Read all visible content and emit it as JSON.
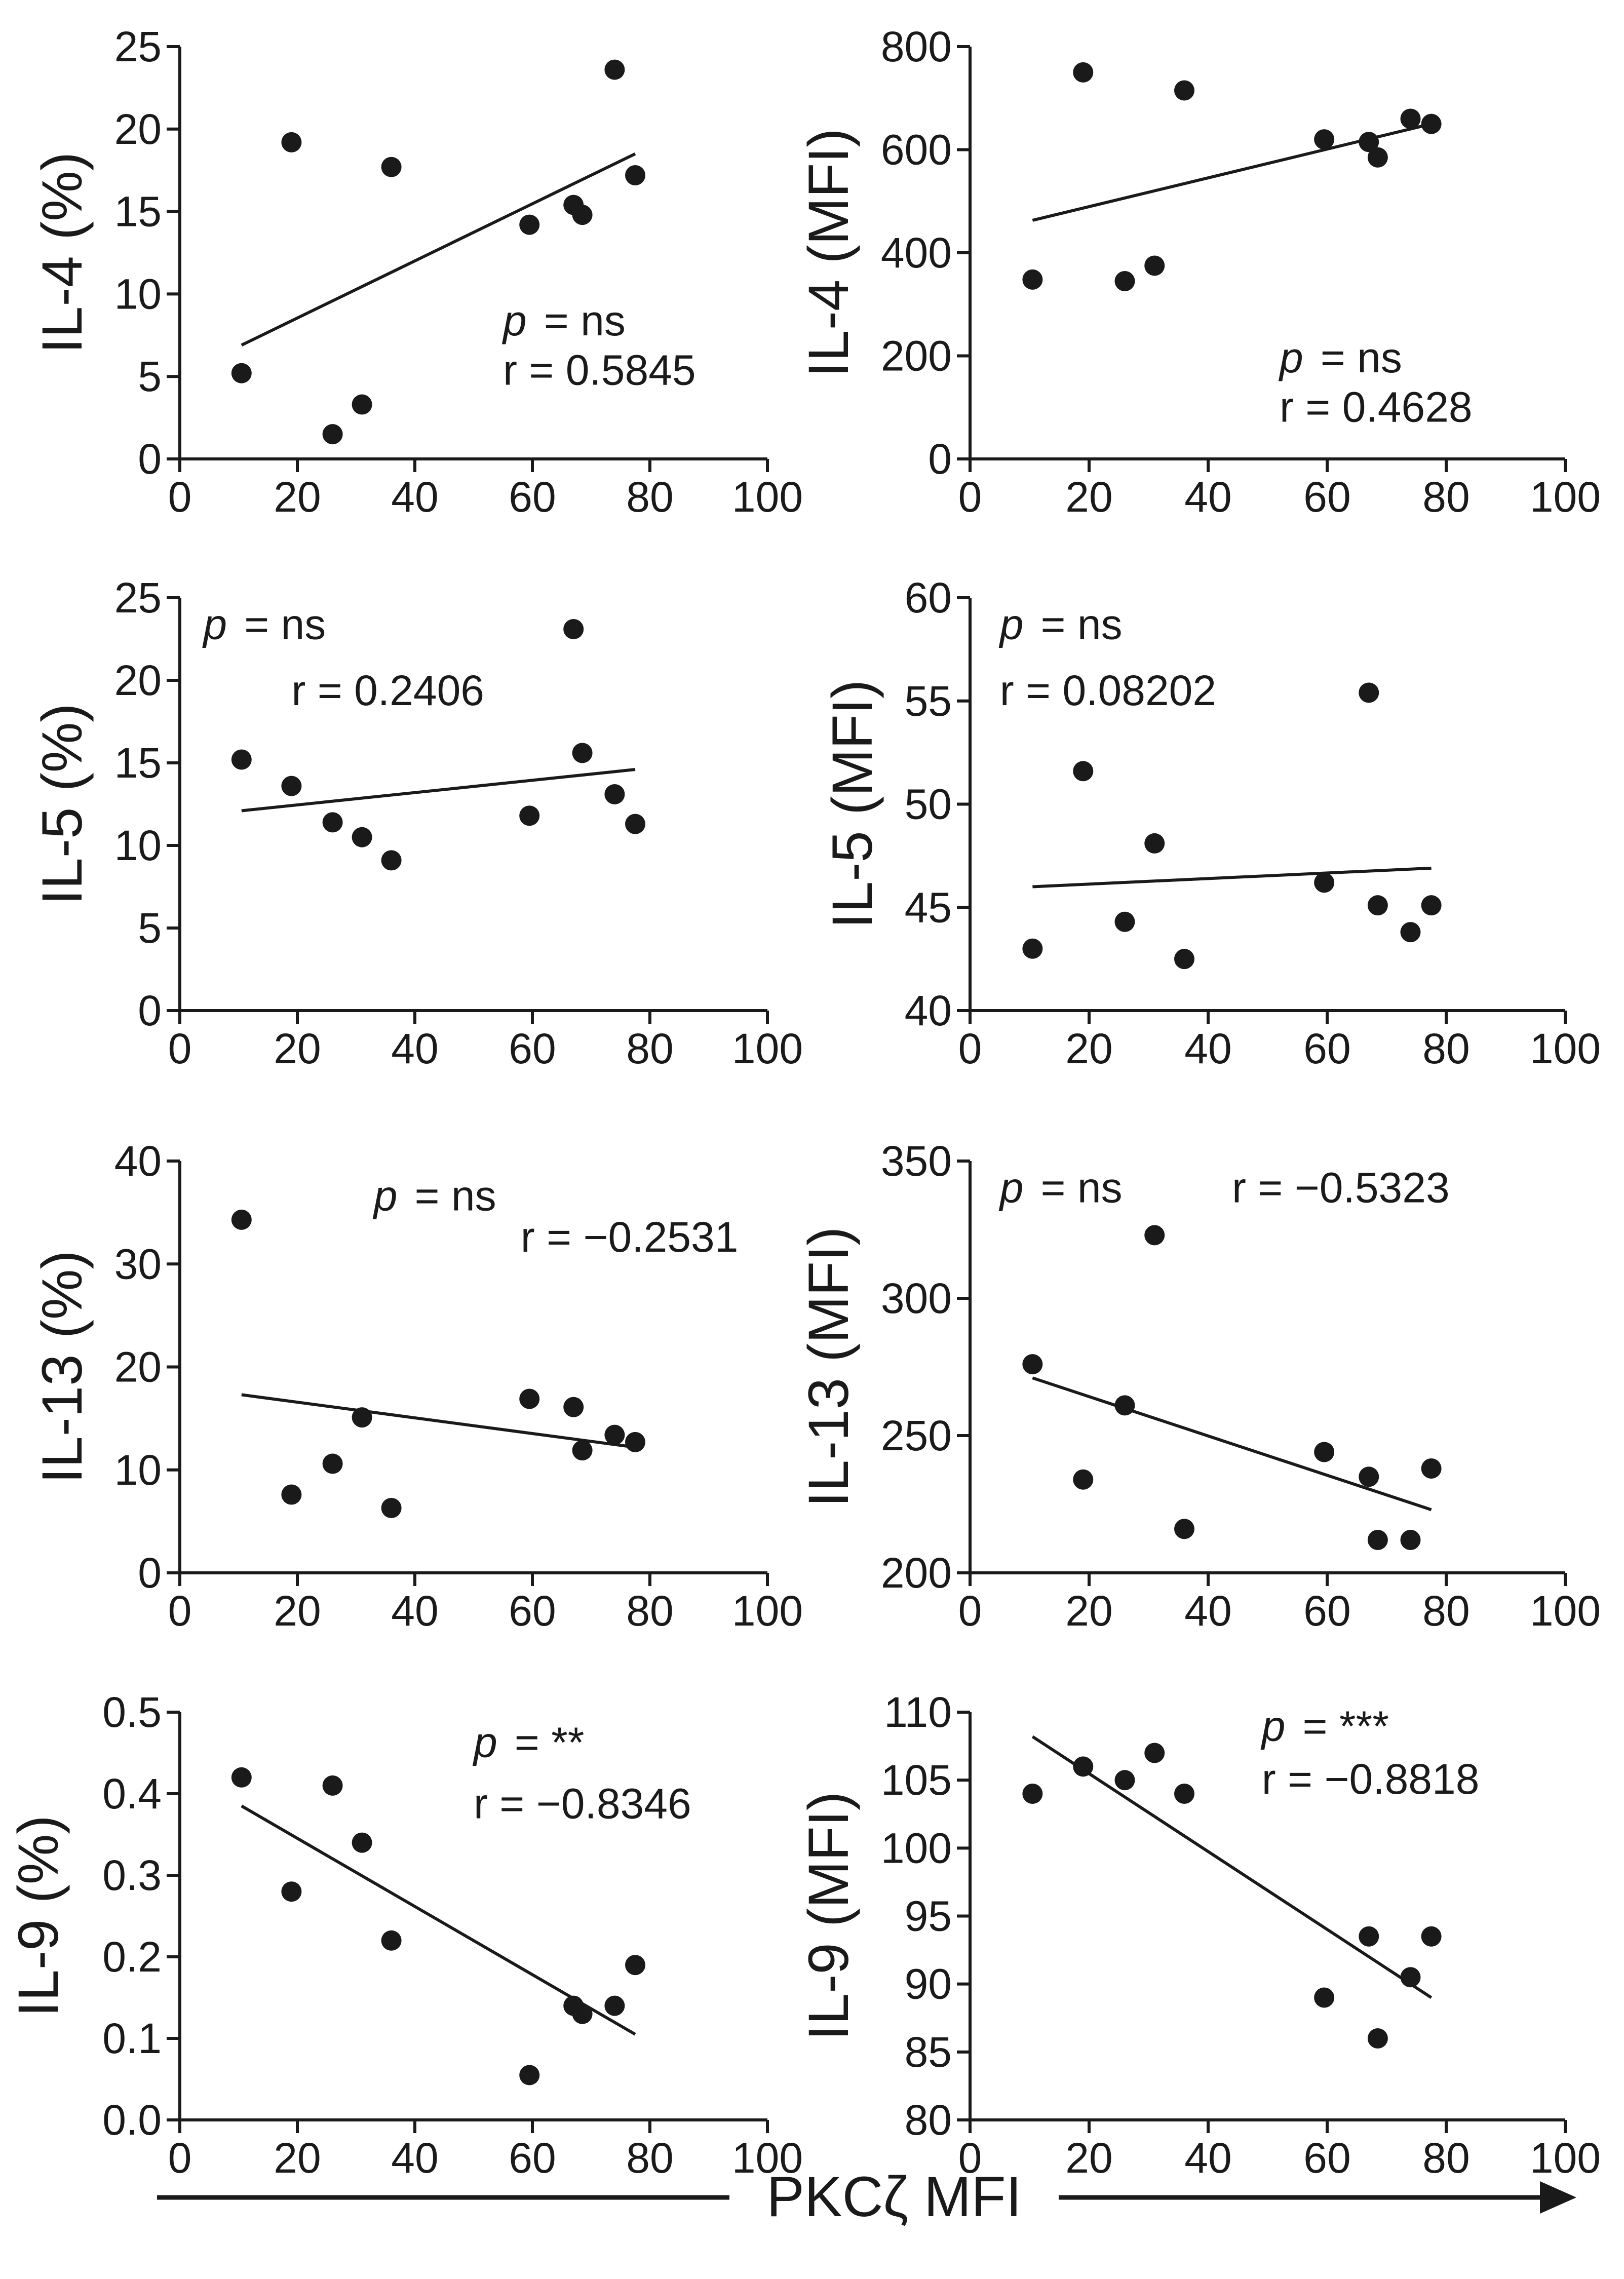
{
  "x_axis_title": "PKCζ MFI",
  "colors": {
    "ink": "#1a1a1a",
    "background": "#ffffff"
  },
  "chart_data": [
    {
      "type": "scatter",
      "panel": "IL-4 (%)",
      "ylabel": "IL-4 (%)",
      "xlim": [
        0,
        100
      ],
      "ylim": [
        0,
        25
      ],
      "xticks": [
        0,
        20,
        40,
        60,
        80,
        100
      ],
      "yticks": [
        0,
        5,
        10,
        15,
        20,
        25
      ],
      "ytick_labels": [
        "0",
        "5",
        "10",
        "15",
        "20",
        "25"
      ],
      "x": [
        10.5,
        19,
        26,
        31,
        36,
        59.5,
        67,
        68.5,
        74,
        77.5
      ],
      "y": [
        5.2,
        19.2,
        1.5,
        3.3,
        17.7,
        14.2,
        15.4,
        14.8,
        23.6,
        17.2
      ],
      "fit": {
        "x": [
          10.5,
          77.5
        ],
        "y": [
          6.9,
          18.5
        ]
      },
      "p_label": "p",
      "p_value": "= ns",
      "r_text": "r = 0.5845"
    },
    {
      "type": "scatter",
      "panel": "IL-4 (MFI)",
      "ylabel": "IL-4 (MFI)",
      "xlim": [
        0,
        100
      ],
      "ylim": [
        0,
        800
      ],
      "xticks": [
        0,
        20,
        40,
        60,
        80,
        100
      ],
      "yticks": [
        0,
        200,
        400,
        600,
        800
      ],
      "ytick_labels": [
        "0",
        "200",
        "400",
        "600",
        "800"
      ],
      "x": [
        10.5,
        19,
        26,
        31,
        36,
        59.5,
        67,
        68.5,
        74,
        77.5
      ],
      "y": [
        348,
        750,
        345,
        375,
        715,
        620,
        615,
        585,
        660,
        650
      ],
      "fit": {
        "x": [
          10.5,
          77.5
        ],
        "y": [
          463,
          650
        ]
      },
      "p_label": "p",
      "p_value": "= ns",
      "r_text": "r = 0.4628"
    },
    {
      "type": "scatter",
      "panel": "IL-5 (%)",
      "ylabel": "IL-5 (%)",
      "xlim": [
        0,
        100
      ],
      "ylim": [
        0,
        25
      ],
      "xticks": [
        0,
        20,
        40,
        60,
        80,
        100
      ],
      "yticks": [
        0,
        5,
        10,
        15,
        20,
        25
      ],
      "ytick_labels": [
        "0",
        "5",
        "10",
        "15",
        "20",
        "25"
      ],
      "x": [
        10.5,
        19,
        26,
        31,
        36,
        59.5,
        67,
        68.5,
        74,
        77.5
      ],
      "y": [
        15.2,
        13.6,
        11.4,
        10.5,
        9.1,
        11.8,
        23.1,
        15.6,
        13.1,
        11.3
      ],
      "fit": {
        "x": [
          10.5,
          77.5
        ],
        "y": [
          12.1,
          14.6
        ]
      },
      "p_label": "p",
      "p_value": "= ns",
      "r_text": "r = 0.2406"
    },
    {
      "type": "scatter",
      "panel": "IL-5 (MFI)",
      "ylabel": "IL-5 (MFI)",
      "xlim": [
        0,
        100
      ],
      "ylim": [
        40,
        60
      ],
      "xticks": [
        0,
        20,
        40,
        60,
        80,
        100
      ],
      "yticks": [
        40,
        45,
        50,
        55,
        60
      ],
      "ytick_labels": [
        "40",
        "45",
        "50",
        "55",
        "60"
      ],
      "x": [
        10.5,
        19,
        26,
        31,
        36,
        59.5,
        67,
        68.5,
        74,
        77.5
      ],
      "y": [
        43,
        51.6,
        44.3,
        48.1,
        42.5,
        46.2,
        55.4,
        45.1,
        43.8,
        45.1
      ],
      "fit": {
        "x": [
          10.5,
          77.5
        ],
        "y": [
          46.0,
          46.9
        ]
      },
      "p_label": "p",
      "p_value": "= ns",
      "r_text": "r = 0.08202"
    },
    {
      "type": "scatter",
      "panel": "IL-13 (%)",
      "ylabel": "IL-13 (%)",
      "xlim": [
        0,
        100
      ],
      "ylim": [
        0,
        40
      ],
      "xticks": [
        0,
        20,
        40,
        60,
        80,
        100
      ],
      "yticks": [
        0,
        10,
        20,
        30,
        40
      ],
      "ytick_labels": [
        "0",
        "10",
        "20",
        "30",
        "40"
      ],
      "x": [
        10.5,
        19,
        26,
        31,
        36,
        59.5,
        67,
        68.5,
        74,
        77.5
      ],
      "y": [
        34.3,
        7.6,
        10.6,
        15.1,
        6.3,
        16.9,
        16.1,
        11.9,
        13.4,
        12.7
      ],
      "fit": {
        "x": [
          10.5,
          77.5
        ],
        "y": [
          17.3,
          12.2
        ]
      },
      "p_label": "p",
      "p_value": "= ns",
      "r_text": "r = −0.2531"
    },
    {
      "type": "scatter",
      "panel": "IL-13 (MFI)",
      "ylabel": "IL-13 (MFI)",
      "xlim": [
        0,
        100
      ],
      "ylim": [
        200,
        350
      ],
      "xticks": [
        0,
        20,
        40,
        60,
        80,
        100
      ],
      "yticks": [
        200,
        250,
        300,
        350
      ],
      "ytick_labels": [
        "200",
        "250",
        "300",
        "350"
      ],
      "x": [
        10.5,
        19,
        26,
        31,
        36,
        59.5,
        67,
        68.5,
        74,
        77.5
      ],
      "y": [
        276,
        234,
        261,
        323,
        216,
        244,
        235,
        212,
        212,
        238
      ],
      "fit": {
        "x": [
          10.5,
          77.5
        ],
        "y": [
          271,
          223
        ]
      },
      "p_label": "p",
      "p_value": "= ns",
      "r_text": "r = −0.5323"
    },
    {
      "type": "scatter",
      "panel": "IL-9 (%)",
      "ylabel": "IL-9 (%)",
      "xlim": [
        0,
        100
      ],
      "ylim": [
        0,
        0.5
      ],
      "xticks": [
        0,
        20,
        40,
        60,
        80,
        100
      ],
      "yticks": [
        0,
        0.1,
        0.2,
        0.3,
        0.4,
        0.5
      ],
      "ytick_labels": [
        "0.0",
        "0.1",
        "0.2",
        "0.3",
        "0.4",
        "0.5"
      ],
      "x": [
        10.5,
        19,
        26,
        31,
        36,
        59.5,
        67,
        68.5,
        74,
        77.5
      ],
      "y": [
        0.42,
        0.28,
        0.41,
        0.34,
        0.22,
        0.055,
        0.14,
        0.13,
        0.14,
        0.19
      ],
      "fit": {
        "x": [
          10.5,
          77.5
        ],
        "y": [
          0.385,
          0.105
        ]
      },
      "p_label": "p",
      "p_value": "= **",
      "r_text": "r = −0.8346"
    },
    {
      "type": "scatter",
      "panel": "IL-9 (MFI)",
      "ylabel": "IL-9 (MFI)",
      "xlim": [
        0,
        100
      ],
      "ylim": [
        80,
        110
      ],
      "xticks": [
        0,
        20,
        40,
        60,
        80,
        100
      ],
      "yticks": [
        80,
        85,
        90,
        95,
        100,
        105,
        110
      ],
      "ytick_labels": [
        "80",
        "85",
        "90",
        "95",
        "100",
        "105",
        "110"
      ],
      "x": [
        10.5,
        19,
        26,
        31,
        36,
        59.5,
        67,
        68.5,
        74,
        77.5
      ],
      "y": [
        104,
        106,
        105,
        107,
        104,
        89,
        93.5,
        86,
        90.5,
        93.5
      ],
      "fit": {
        "x": [
          10.5,
          77.5
        ],
        "y": [
          108.2,
          89
        ]
      },
      "p_label": "p",
      "p_value": "= ***",
      "r_text": "r = −0.8818"
    }
  ]
}
